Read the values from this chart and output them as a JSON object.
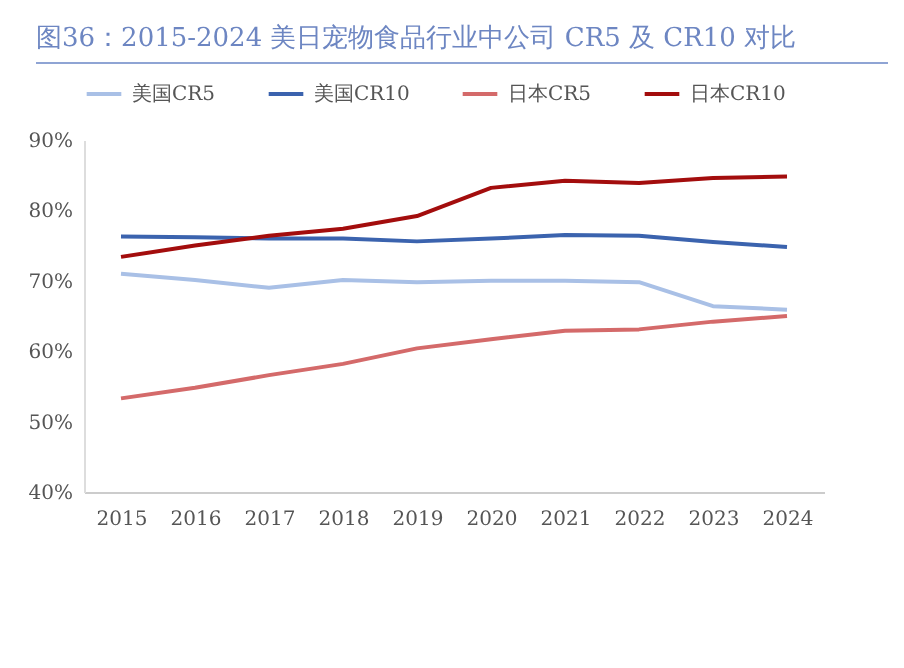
{
  "chart_data": {
    "type": "line",
    "title": "图36：2015-2024 美日宠物食品行业中公司 CR5 及 CR10 对比",
    "categories": [
      "2015",
      "2016",
      "2017",
      "2018",
      "2019",
      "2020",
      "2021",
      "2022",
      "2023",
      "2024"
    ],
    "series": [
      {
        "name": "美国CR5",
        "color": "#a9c0e6",
        "values": [
          71.0,
          70.1,
          69.0,
          70.1,
          69.8,
          70.0,
          70.0,
          69.8,
          66.4,
          65.9
        ]
      },
      {
        "name": "美国CR10",
        "color": "#3b63ae",
        "values": [
          76.3,
          76.2,
          76.0,
          76.0,
          75.6,
          76.0,
          76.5,
          76.4,
          75.5,
          74.8
        ]
      },
      {
        "name": "日本CR5",
        "color": "#d46a6a",
        "values": [
          53.3,
          54.8,
          56.6,
          58.2,
          60.4,
          61.7,
          62.9,
          63.1,
          64.2,
          65.0
        ]
      },
      {
        "name": "日本CR10",
        "color": "#a30d0d",
        "values": [
          73.4,
          75.0,
          76.4,
          77.4,
          79.2,
          83.2,
          84.2,
          83.9,
          84.6,
          84.8
        ]
      }
    ],
    "ylim": [
      40,
      90
    ],
    "yticks": [
      {
        "value": 40,
        "label": "40%"
      },
      {
        "value": 50,
        "label": "50%"
      },
      {
        "value": 60,
        "label": "60%"
      },
      {
        "value": 70,
        "label": "70%"
      },
      {
        "value": 80,
        "label": "80%"
      },
      {
        "value": 90,
        "label": "90%"
      }
    ],
    "legend": "top",
    "grid": false
  }
}
